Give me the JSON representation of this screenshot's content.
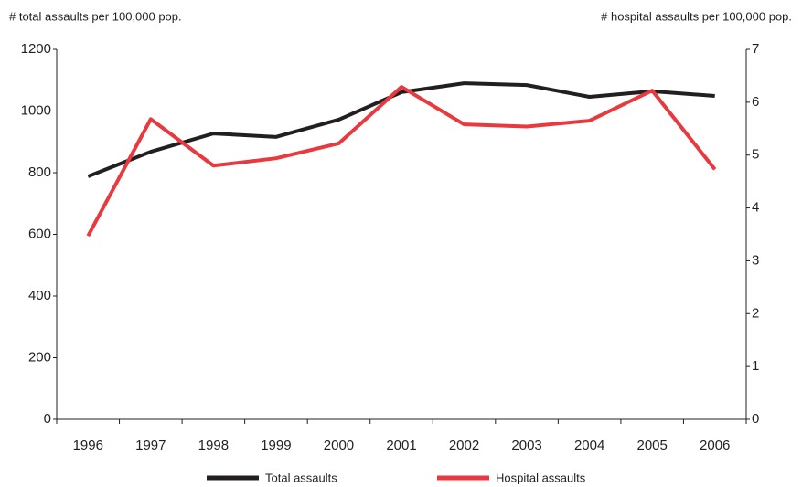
{
  "chart_data": {
    "type": "line",
    "ylabel": "# total assaults per 100,000 pop.",
    "y2label": "# hospital assaults per 100,000 pop.",
    "categories": [
      "1996",
      "1997",
      "1998",
      "1999",
      "2000",
      "2001",
      "2002",
      "2003",
      "2004",
      "2005",
      "2006"
    ],
    "series": [
      {
        "name": "Total assaults",
        "color": "#231f20",
        "values": [
          788,
          868,
          927,
          916,
          972,
          1061,
          1090,
          1084,
          1046,
          1064,
          1049
        ]
      },
      {
        "name": "Hospital assaults",
        "color": "#e8393f",
        "axis": "y2",
        "values": [
          3.47,
          5.68,
          4.8,
          4.94,
          5.22,
          6.29,
          5.58,
          5.54,
          5.65,
          6.22,
          4.73
        ]
      }
    ],
    "ylim": [
      0,
      1200
    ],
    "yticks": [
      0,
      200,
      400,
      600,
      800,
      1000,
      1200
    ],
    "y2lim": [
      0,
      7
    ],
    "y2ticks": [
      0,
      1,
      2,
      3,
      4,
      5,
      6,
      7
    ],
    "grid": false,
    "legend": "bottom"
  }
}
